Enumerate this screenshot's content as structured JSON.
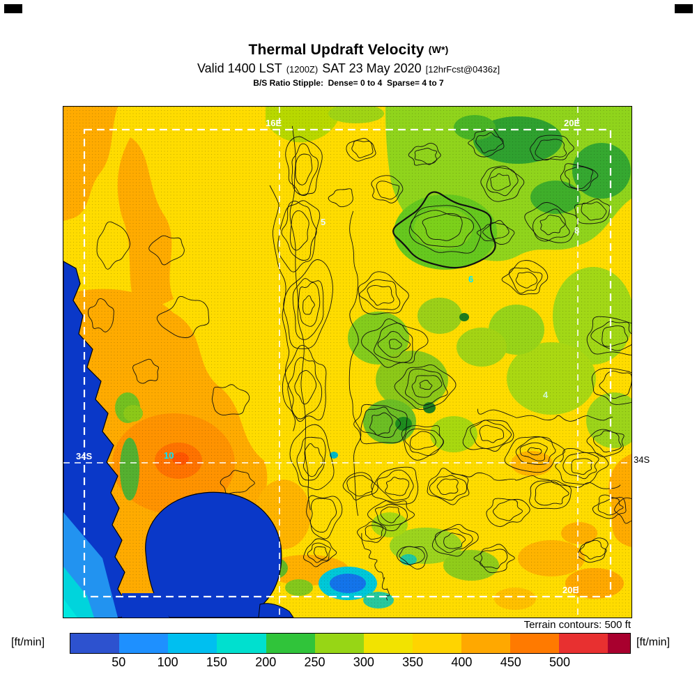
{
  "header": {
    "title": "Thermal Updraft Velocity",
    "title_suffix": "(W*)",
    "valid_prefix": "Valid 1400 LST",
    "valid_zulu": "(1200Z)",
    "valid_date": "SAT 23 May 2020",
    "valid_fcst": "[12hrFcst@0436z]",
    "stipple_note": "B/S Ratio Stipple:  Dense= 0 to 4  Sparse= 4 to 7"
  },
  "map": {
    "geo_labels": [
      {
        "text": "16E",
        "color": "#ffffff"
      },
      {
        "text": "20E",
        "color": "#ffffff"
      },
      {
        "text": "34S",
        "color": "#ffffff"
      },
      {
        "text": "20E",
        "color": "#ffffff"
      }
    ],
    "value_labels": [
      {
        "text": "5",
        "color": "#eaf8ff"
      },
      {
        "text": "8",
        "color": "#f0fff0"
      },
      {
        "text": "6",
        "color": "#00e8ff"
      },
      {
        "text": "4",
        "color": "#d0f8d0"
      },
      {
        "text": "10",
        "color": "#00e8ff"
      }
    ],
    "right_lat_label": "34S"
  },
  "footer": {
    "terrain_note": "Terrain contours: 500 ft"
  },
  "colorbar": {
    "unit_left": "[ft/min]",
    "unit_right": "[ft/min]",
    "tick_labels": [
      "50",
      "100",
      "150",
      "200",
      "250",
      "300",
      "350",
      "400",
      "450",
      "500"
    ],
    "colors": [
      "#2d52cf",
      "#1e90ff",
      "#00bff0",
      "#00e0cf",
      "#30c43a",
      "#97d615",
      "#f2e300",
      "#ffd400",
      "#ffa800",
      "#ff7a00",
      "#e83030",
      "#a8002e"
    ]
  },
  "chart_data": {
    "type": "heatmap",
    "title": "Thermal Updraft Velocity (W*)",
    "valid": "1400 LST (1200Z) SAT 23 May 2020",
    "forecast_run": "12hrFcst@0436z",
    "stipple_legend": "B/S Ratio Stipple: Dense= 0 to 4 Sparse= 4 to 7",
    "units": "ft/min",
    "scale_values": [
      50,
      100,
      150,
      200,
      250,
      300,
      350,
      400,
      450,
      500
    ],
    "scale_colors": [
      "#2d52cf",
      "#1e90ff",
      "#00bff0",
      "#00e0cf",
      "#30c43a",
      "#97d615",
      "#f2e300",
      "#ffd400",
      "#ffa800",
      "#ff7a00",
      "#e83030",
      "#a8002e"
    ],
    "terrain_contour_interval_ft": 500,
    "geo_ticks": [
      "16E",
      "20E",
      "34S"
    ],
    "map_annotation_values": [
      5,
      8,
      6,
      4,
      10
    ],
    "palette_notes": {
      "ocean": "#0a38c8",
      "dominant_land": "#ffdc00",
      "orange_zone": "#ffab00",
      "green_zone": "#90d41c"
    }
  }
}
